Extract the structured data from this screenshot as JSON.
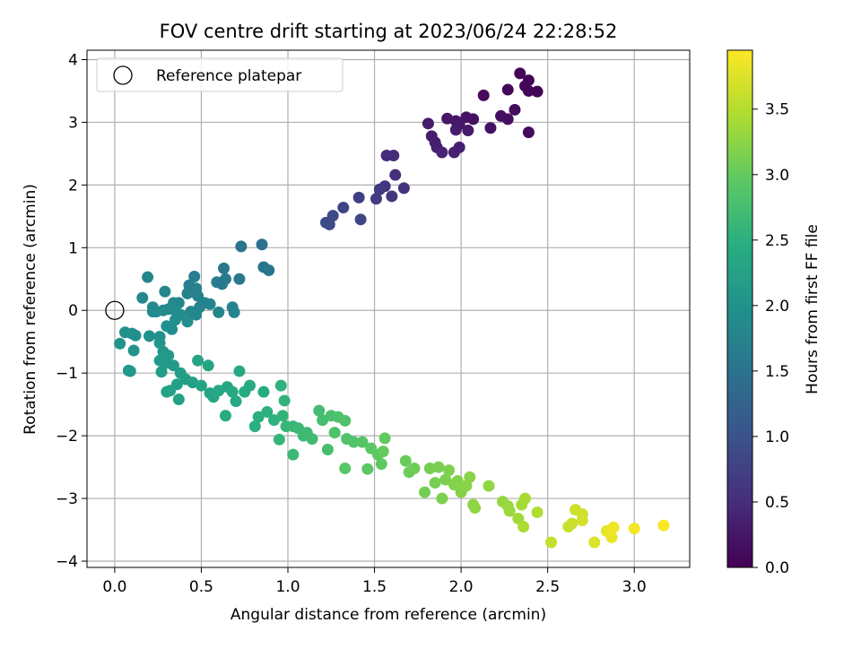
{
  "chart_data": {
    "type": "scatter",
    "title": "FOV centre drift starting at 2023/06/24 22:28:52",
    "xlabel": "Angular distance from reference (arcmin)",
    "ylabel": "Rotation from reference (arcmin)",
    "xlim": [
      -0.16,
      3.32
    ],
    "ylim": [
      -4.1,
      4.15
    ],
    "xticks": [
      0.0,
      0.5,
      1.0,
      1.5,
      2.0,
      2.5,
      3.0
    ],
    "xtick_labels": [
      "0.0",
      "0.5",
      "1.0",
      "1.5",
      "2.0",
      "2.5",
      "3.0"
    ],
    "yticks": [
      -4,
      -3,
      -2,
      -1,
      0,
      1,
      2,
      3,
      4
    ],
    "ytick_labels": [
      "−4",
      "−3",
      "−2",
      "−1",
      "0",
      "1",
      "2",
      "3",
      "4"
    ],
    "grid": true,
    "colormap": "viridis",
    "colorbar": {
      "label": "Hours from first FF file",
      "range": [
        0.0,
        3.95
      ],
      "ticks": [
        0.0,
        0.5,
        1.0,
        1.5,
        2.0,
        2.5,
        3.0,
        3.5
      ],
      "tick_labels": [
        "0.0",
        "0.5",
        "1.0",
        "1.5",
        "2.0",
        "2.5",
        "3.0",
        "3.5"
      ]
    },
    "legend": {
      "position": "top-left",
      "entries": [
        {
          "label": "Reference platepar",
          "marker": "open-circle",
          "color": "#000000"
        }
      ]
    },
    "reference_point": {
      "x": 0.0,
      "y": 0.0
    },
    "points": [
      {
        "x": 2.34,
        "y": 3.78,
        "c": 0.02
      },
      {
        "x": 2.39,
        "y": 3.67,
        "c": 0.04
      },
      {
        "x": 2.37,
        "y": 3.58,
        "c": 0.05
      },
      {
        "x": 2.39,
        "y": 3.5,
        "c": 0.06
      },
      {
        "x": 2.44,
        "y": 3.49,
        "c": 0.05
      },
      {
        "x": 2.27,
        "y": 3.52,
        "c": 0.08
      },
      {
        "x": 2.13,
        "y": 3.43,
        "c": 0.1
      },
      {
        "x": 2.31,
        "y": 3.2,
        "c": 0.12
      },
      {
        "x": 2.23,
        "y": 3.1,
        "c": 0.14
      },
      {
        "x": 2.27,
        "y": 3.05,
        "c": 0.16
      },
      {
        "x": 2.17,
        "y": 2.91,
        "c": 0.18
      },
      {
        "x": 2.39,
        "y": 2.84,
        "c": 0.1
      },
      {
        "x": 2.07,
        "y": 3.05,
        "c": 0.2
      },
      {
        "x": 2.03,
        "y": 3.08,
        "c": 0.22
      },
      {
        "x": 1.97,
        "y": 3.02,
        "c": 0.24
      },
      {
        "x": 1.99,
        "y": 2.97,
        "c": 0.26
      },
      {
        "x": 1.92,
        "y": 3.06,
        "c": 0.26
      },
      {
        "x": 2.04,
        "y": 2.87,
        "c": 0.28
      },
      {
        "x": 1.97,
        "y": 2.88,
        "c": 0.3
      },
      {
        "x": 1.81,
        "y": 2.98,
        "c": 0.3
      },
      {
        "x": 1.83,
        "y": 2.78,
        "c": 0.33
      },
      {
        "x": 1.85,
        "y": 2.68,
        "c": 0.35
      },
      {
        "x": 1.86,
        "y": 2.6,
        "c": 0.37
      },
      {
        "x": 1.89,
        "y": 2.52,
        "c": 0.4
      },
      {
        "x": 1.96,
        "y": 2.52,
        "c": 0.38
      },
      {
        "x": 1.99,
        "y": 2.6,
        "c": 0.36
      },
      {
        "x": 1.57,
        "y": 2.47,
        "c": 0.5
      },
      {
        "x": 1.61,
        "y": 2.47,
        "c": 0.52
      },
      {
        "x": 1.62,
        "y": 2.16,
        "c": 0.55
      },
      {
        "x": 1.56,
        "y": 1.98,
        "c": 0.6
      },
      {
        "x": 1.67,
        "y": 1.95,
        "c": 0.6
      },
      {
        "x": 1.6,
        "y": 1.82,
        "c": 0.65
      },
      {
        "x": 1.53,
        "y": 1.93,
        "c": 0.68
      },
      {
        "x": 1.51,
        "y": 1.78,
        "c": 0.72
      },
      {
        "x": 1.41,
        "y": 1.8,
        "c": 0.75
      },
      {
        "x": 1.32,
        "y": 1.64,
        "c": 0.8
      },
      {
        "x": 1.42,
        "y": 1.45,
        "c": 0.85
      },
      {
        "x": 1.26,
        "y": 1.51,
        "c": 0.88
      },
      {
        "x": 1.22,
        "y": 1.4,
        "c": 0.9
      },
      {
        "x": 1.24,
        "y": 1.37,
        "c": 0.92
      },
      {
        "x": 0.85,
        "y": 1.05,
        "c": 1.5
      },
      {
        "x": 0.73,
        "y": 1.02,
        "c": 1.52
      },
      {
        "x": 0.86,
        "y": 0.69,
        "c": 1.55
      },
      {
        "x": 0.89,
        "y": 0.64,
        "c": 1.55
      },
      {
        "x": 0.63,
        "y": 0.67,
        "c": 1.58
      },
      {
        "x": 0.72,
        "y": 0.5,
        "c": 1.6
      },
      {
        "x": 0.64,
        "y": 0.5,
        "c": 1.62
      },
      {
        "x": 0.59,
        "y": 0.45,
        "c": 1.65
      },
      {
        "x": 0.62,
        "y": 0.42,
        "c": 1.62
      },
      {
        "x": 0.46,
        "y": 0.54,
        "c": 1.68
      },
      {
        "x": 0.43,
        "y": 0.4,
        "c": 1.7
      },
      {
        "x": 0.47,
        "y": 0.35,
        "c": 1.72
      },
      {
        "x": 0.42,
        "y": 0.27,
        "c": 1.74
      },
      {
        "x": 0.48,
        "y": 0.23,
        "c": 1.74
      },
      {
        "x": 0.52,
        "y": 0.12,
        "c": 1.76
      },
      {
        "x": 0.55,
        "y": 0.1,
        "c": 1.78
      },
      {
        "x": 0.49,
        "y": 0.05,
        "c": 1.78
      },
      {
        "x": 0.44,
        "y": -0.02,
        "c": 1.8
      },
      {
        "x": 0.47,
        "y": -0.07,
        "c": 1.82
      },
      {
        "x": 0.6,
        "y": -0.03,
        "c": 1.8
      },
      {
        "x": 0.68,
        "y": 0.05,
        "c": 1.76
      },
      {
        "x": 0.69,
        "y": -0.03,
        "c": 1.78
      },
      {
        "x": 0.37,
        "y": 0.12,
        "c": 1.82
      },
      {
        "x": 0.34,
        "y": 0.12,
        "c": 1.84
      },
      {
        "x": 0.29,
        "y": 0.3,
        "c": 1.84
      },
      {
        "x": 0.19,
        "y": 0.53,
        "c": 1.82
      },
      {
        "x": 0.16,
        "y": 0.2,
        "c": 1.86
      },
      {
        "x": 0.22,
        "y": 0.05,
        "c": 1.88
      },
      {
        "x": 0.24,
        "y": -0.02,
        "c": 1.9
      },
      {
        "x": 0.28,
        "y": 0.0,
        "c": 1.9
      },
      {
        "x": 0.31,
        "y": 0.02,
        "c": 1.9
      },
      {
        "x": 0.35,
        "y": 0.0,
        "c": 1.92
      },
      {
        "x": 0.38,
        "y": -0.07,
        "c": 1.92
      },
      {
        "x": 0.35,
        "y": -0.15,
        "c": 1.94
      },
      {
        "x": 0.42,
        "y": -0.18,
        "c": 1.94
      },
      {
        "x": 0.3,
        "y": -0.25,
        "c": 1.96
      },
      {
        "x": 0.33,
        "y": -0.3,
        "c": 1.96
      },
      {
        "x": 0.22,
        "y": -0.02,
        "c": 1.9
      },
      {
        "x": 0.1,
        "y": -0.37,
        "c": 1.98
      },
      {
        "x": 0.12,
        "y": -0.4,
        "c": 1.98
      },
      {
        "x": 0.2,
        "y": -0.41,
        "c": 2.0
      },
      {
        "x": 0.26,
        "y": -0.42,
        "c": 2.0
      },
      {
        "x": 0.06,
        "y": -0.35,
        "c": 2.0
      },
      {
        "x": 0.03,
        "y": -0.53,
        "c": 2.02
      },
      {
        "x": 0.11,
        "y": -0.64,
        "c": 2.04
      },
      {
        "x": 0.08,
        "y": -0.96,
        "c": 2.1
      },
      {
        "x": 0.09,
        "y": -0.97,
        "c": 2.12
      },
      {
        "x": 0.26,
        "y": -0.52,
        "c": 2.08
      },
      {
        "x": 0.28,
        "y": -0.66,
        "c": 2.1
      },
      {
        "x": 0.31,
        "y": -0.72,
        "c": 2.12
      },
      {
        "x": 0.26,
        "y": -0.8,
        "c": 2.14
      },
      {
        "x": 0.3,
        "y": -0.84,
        "c": 2.14
      },
      {
        "x": 0.34,
        "y": -0.88,
        "c": 2.16
      },
      {
        "x": 0.27,
        "y": -0.98,
        "c": 2.18
      },
      {
        "x": 0.38,
        "y": -1.0,
        "c": 2.2
      },
      {
        "x": 0.41,
        "y": -1.1,
        "c": 2.22
      },
      {
        "x": 0.45,
        "y": -1.15,
        "c": 2.24
      },
      {
        "x": 0.36,
        "y": -1.18,
        "c": 2.24
      },
      {
        "x": 0.3,
        "y": -1.3,
        "c": 2.26
      },
      {
        "x": 0.32,
        "y": -1.28,
        "c": 2.28
      },
      {
        "x": 0.37,
        "y": -1.42,
        "c": 2.26
      },
      {
        "x": 0.48,
        "y": -0.8,
        "c": 2.3
      },
      {
        "x": 0.54,
        "y": -0.88,
        "c": 2.3
      },
      {
        "x": 0.5,
        "y": -1.2,
        "c": 2.32
      },
      {
        "x": 0.55,
        "y": -1.32,
        "c": 2.32
      },
      {
        "x": 0.57,
        "y": -1.38,
        "c": 2.34
      },
      {
        "x": 0.6,
        "y": -1.28,
        "c": 2.36
      },
      {
        "x": 0.65,
        "y": -1.22,
        "c": 2.36
      },
      {
        "x": 0.68,
        "y": -1.3,
        "c": 2.38
      },
      {
        "x": 0.7,
        "y": -1.45,
        "c": 2.38
      },
      {
        "x": 0.72,
        "y": -0.97,
        "c": 2.4
      },
      {
        "x": 0.75,
        "y": -1.3,
        "c": 2.42
      },
      {
        "x": 0.78,
        "y": -1.2,
        "c": 2.42
      },
      {
        "x": 0.64,
        "y": -1.68,
        "c": 2.44
      },
      {
        "x": 0.86,
        "y": -1.3,
        "c": 2.46
      },
      {
        "x": 0.81,
        "y": -1.85,
        "c": 2.5
      },
      {
        "x": 0.83,
        "y": -1.7,
        "c": 2.5
      },
      {
        "x": 0.88,
        "y": -1.62,
        "c": 2.52
      },
      {
        "x": 0.92,
        "y": -1.75,
        "c": 2.54
      },
      {
        "x": 0.96,
        "y": -1.2,
        "c": 2.54
      },
      {
        "x": 0.98,
        "y": -1.44,
        "c": 2.56
      },
      {
        "x": 0.97,
        "y": -1.68,
        "c": 2.58
      },
      {
        "x": 0.95,
        "y": -2.06,
        "c": 2.6
      },
      {
        "x": 0.99,
        "y": -1.85,
        "c": 2.62
      },
      {
        "x": 1.03,
        "y": -1.85,
        "c": 2.64
      },
      {
        "x": 1.06,
        "y": -1.88,
        "c": 2.66
      },
      {
        "x": 1.09,
        "y": -2.0,
        "c": 2.68
      },
      {
        "x": 1.03,
        "y": -2.3,
        "c": 2.66
      },
      {
        "x": 1.11,
        "y": -1.95,
        "c": 2.7
      },
      {
        "x": 1.14,
        "y": -2.05,
        "c": 2.72
      },
      {
        "x": 1.18,
        "y": -1.6,
        "c": 2.74
      },
      {
        "x": 1.2,
        "y": -1.75,
        "c": 2.76
      },
      {
        "x": 1.23,
        "y": -2.22,
        "c": 2.78
      },
      {
        "x": 1.25,
        "y": -1.68,
        "c": 2.8
      },
      {
        "x": 1.29,
        "y": -1.7,
        "c": 2.82
      },
      {
        "x": 1.33,
        "y": -1.76,
        "c": 2.84
      },
      {
        "x": 1.27,
        "y": -1.95,
        "c": 2.84
      },
      {
        "x": 1.34,
        "y": -2.05,
        "c": 2.86
      },
      {
        "x": 1.38,
        "y": -2.1,
        "c": 2.88
      },
      {
        "x": 1.43,
        "y": -2.1,
        "c": 2.9
      },
      {
        "x": 1.33,
        "y": -2.52,
        "c": 2.92
      },
      {
        "x": 1.46,
        "y": -2.53,
        "c": 2.94
      },
      {
        "x": 1.48,
        "y": -2.2,
        "c": 2.94
      },
      {
        "x": 1.52,
        "y": -2.3,
        "c": 2.96
      },
      {
        "x": 1.54,
        "y": -2.45,
        "c": 2.98
      },
      {
        "x": 1.56,
        "y": -2.04,
        "c": 3.0
      },
      {
        "x": 1.55,
        "y": -2.25,
        "c": 3.02
      },
      {
        "x": 1.68,
        "y": -2.4,
        "c": 3.04
      },
      {
        "x": 1.7,
        "y": -2.58,
        "c": 3.06
      },
      {
        "x": 1.73,
        "y": -2.52,
        "c": 3.08
      },
      {
        "x": 1.79,
        "y": -2.9,
        "c": 3.1
      },
      {
        "x": 1.82,
        "y": -2.52,
        "c": 3.12
      },
      {
        "x": 1.85,
        "y": -2.75,
        "c": 3.14
      },
      {
        "x": 1.87,
        "y": -2.5,
        "c": 3.14
      },
      {
        "x": 1.89,
        "y": -3.0,
        "c": 3.16
      },
      {
        "x": 1.91,
        "y": -2.7,
        "c": 3.16
      },
      {
        "x": 1.93,
        "y": -2.55,
        "c": 3.18
      },
      {
        "x": 1.96,
        "y": -2.78,
        "c": 3.2
      },
      {
        "x": 1.98,
        "y": -2.72,
        "c": 3.2
      },
      {
        "x": 2.0,
        "y": -2.9,
        "c": 3.22
      },
      {
        "x": 2.03,
        "y": -2.8,
        "c": 3.24
      },
      {
        "x": 2.05,
        "y": -2.66,
        "c": 3.24
      },
      {
        "x": 2.07,
        "y": -3.1,
        "c": 3.26
      },
      {
        "x": 2.08,
        "y": -3.15,
        "c": 3.28
      },
      {
        "x": 2.16,
        "y": -2.8,
        "c": 3.3
      },
      {
        "x": 2.24,
        "y": -3.05,
        "c": 3.32
      },
      {
        "x": 2.27,
        "y": -3.12,
        "c": 3.34
      },
      {
        "x": 2.28,
        "y": -3.2,
        "c": 3.36
      },
      {
        "x": 2.33,
        "y": -3.32,
        "c": 3.4
      },
      {
        "x": 2.35,
        "y": -3.1,
        "c": 3.42
      },
      {
        "x": 2.37,
        "y": -3.0,
        "c": 3.44
      },
      {
        "x": 2.36,
        "y": -3.45,
        "c": 3.46
      },
      {
        "x": 2.44,
        "y": -3.22,
        "c": 3.5
      },
      {
        "x": 2.52,
        "y": -3.7,
        "c": 3.6
      },
      {
        "x": 2.62,
        "y": -3.45,
        "c": 3.62
      },
      {
        "x": 2.64,
        "y": -3.4,
        "c": 3.64
      },
      {
        "x": 2.66,
        "y": -3.18,
        "c": 3.66
      },
      {
        "x": 2.7,
        "y": -3.25,
        "c": 3.68
      },
      {
        "x": 2.7,
        "y": -3.35,
        "c": 3.7
      },
      {
        "x": 2.77,
        "y": -3.7,
        "c": 3.76
      },
      {
        "x": 2.84,
        "y": -3.52,
        "c": 3.8
      },
      {
        "x": 2.86,
        "y": -3.55,
        "c": 3.82
      },
      {
        "x": 2.87,
        "y": -3.62,
        "c": 3.84
      },
      {
        "x": 2.88,
        "y": -3.46,
        "c": 3.86
      },
      {
        "x": 3.0,
        "y": -3.48,
        "c": 3.9
      },
      {
        "x": 3.17,
        "y": -3.43,
        "c": 3.94
      }
    ]
  }
}
